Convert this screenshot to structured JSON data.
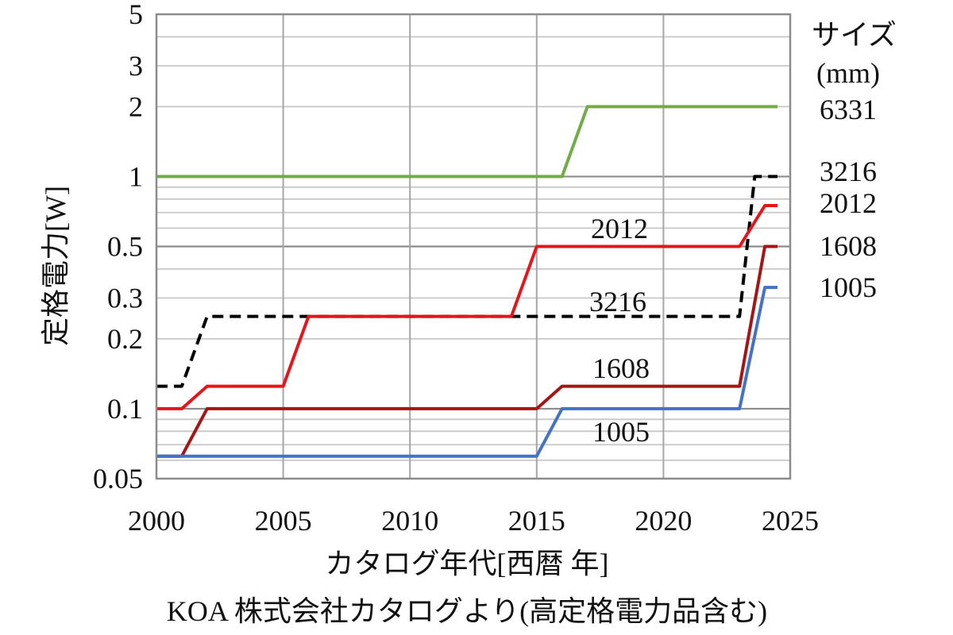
{
  "chart_data": {
    "type": "line",
    "title": "",
    "xlabel": "カタログ年代[西暦 年]",
    "ylabel": "定格電力[W]",
    "caption": "KOA 株式会社カタログより(高定格電力品含む)",
    "x_scale": "linear",
    "y_scale": "log",
    "xlim": [
      2000,
      2025
    ],
    "ylim": [
      0.05,
      5
    ],
    "x_ticks": [
      2000,
      2005,
      2010,
      2015,
      2020,
      2025
    ],
    "x_tick_labels": [
      "2000",
      "2005",
      "2010",
      "2015",
      "2020",
      "2025"
    ],
    "y_label_ticks": [
      0.05,
      0.1,
      0.2,
      0.3,
      0.5,
      1,
      2,
      3,
      5
    ],
    "y_tick_labels": [
      "0.05",
      "0.1",
      "0.2",
      "0.3",
      "0.5",
      "1",
      "2",
      "3",
      "5"
    ],
    "y_minor_grid": [
      0.06,
      0.07,
      0.08,
      0.09,
      0.2,
      0.3,
      0.4,
      0.6,
      0.7,
      0.8,
      0.9,
      2,
      3,
      4
    ],
    "y_major_grid": [
      0.1,
      0.5,
      1
    ],
    "grid": true,
    "legend": {
      "title_line1": "サイズ",
      "title_line2": "(mm)",
      "placement": "right"
    },
    "series": [
      {
        "name": "6331",
        "color": "#70ad47",
        "dash": "solid",
        "x": [
          2000,
          2016,
          2017,
          2024.5
        ],
        "y": [
          1,
          1,
          2,
          2
        ]
      },
      {
        "name": "3216",
        "color": "#000000",
        "dash": "dashed",
        "x": [
          2000,
          2001,
          2002,
          2023,
          2023.6,
          2024.5
        ],
        "y": [
          0.125,
          0.125,
          0.25,
          0.25,
          1,
          1
        ],
        "inline_label": "3216"
      },
      {
        "name": "2012",
        "color": "#e8141b",
        "dash": "solid",
        "x": [
          2000,
          2001,
          2002,
          2005,
          2006,
          2014,
          2015,
          2023,
          2024,
          2024.5
        ],
        "y": [
          0.1,
          0.1,
          0.125,
          0.125,
          0.25,
          0.25,
          0.5,
          0.5,
          0.75,
          0.75
        ],
        "inline_label": "2012"
      },
      {
        "name": "1608",
        "color": "#a51515",
        "dash": "solid",
        "x": [
          2000,
          2001,
          2002,
          2015,
          2016,
          2023,
          2024,
          2024.5
        ],
        "y": [
          0.0625,
          0.0625,
          0.1,
          0.1,
          0.125,
          0.125,
          0.5,
          0.5
        ],
        "inline_label": "1608"
      },
      {
        "name": "1005",
        "color": "#4472c4",
        "dash": "solid",
        "x": [
          2000,
          2015,
          2016,
          2023,
          2024,
          2024.5
        ],
        "y": [
          0.0625,
          0.0625,
          0.1,
          0.1,
          0.333,
          0.333
        ],
        "inline_label": "1005"
      }
    ]
  }
}
